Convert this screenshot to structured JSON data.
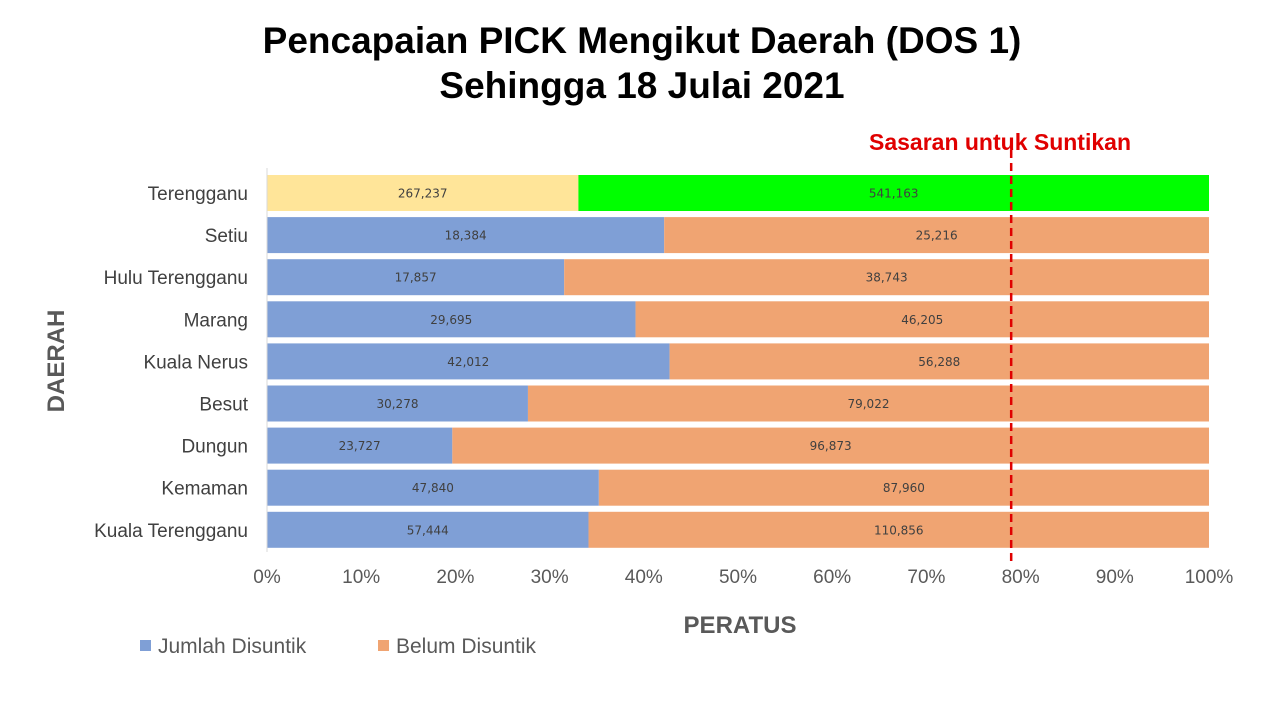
{
  "title": {
    "line1": "Pencapaian PICK Mengikut Daerah (DOS 1)",
    "line2": "Sehingga 18 Julai 2021"
  },
  "chart_data": {
    "type": "bar",
    "orientation": "horizontal",
    "stacked": "100%",
    "categories": [
      "Terengganu",
      "Setiu",
      "Hulu Terengganu",
      "Marang ",
      "Kuala Nerus",
      "Besut",
      "Dungun",
      "Kemaman",
      "Kuala Terengganu"
    ],
    "series": [
      {
        "name": "Jumlah Disuntik",
        "values": [
          267237,
          18384,
          17857,
          29695,
          42012,
          30278,
          23727,
          47840,
          57444
        ],
        "color": "#7f9fd6"
      },
      {
        "name": "Belum Disuntik",
        "values": [
          541163,
          25216,
          38743,
          46205,
          56288,
          79022,
          96873,
          87960,
          110856
        ],
        "color": "#f0a472"
      }
    ],
    "data_labels": [
      [
        "267,237",
        "18,384",
        "17,857",
        "29,695",
        "42,012",
        "30,278",
        "23,727",
        "47,840",
        "57,444"
      ],
      [
        "541,163",
        "25,216",
        "38,743",
        "46,205",
        "56,288",
        "79,022",
        "96,873",
        "87,960",
        "110,856"
      ]
    ],
    "highlight_row": {
      "category": "Terengganu",
      "colors": [
        "#ffe599",
        "#00ff00"
      ]
    },
    "xlabel": "PERATUS",
    "ylabel": "DAERAH",
    "xlim": [
      0,
      100
    ],
    "x_ticks": [
      "0%",
      "10%",
      "20%",
      "30%",
      "40%",
      "50%",
      "60%",
      "70%",
      "80%",
      "90%",
      "100%"
    ],
    "reference_line": {
      "value": 79,
      "label": "Sasaran untuk Suntikan",
      "color": "#e00000",
      "style": "dashed"
    },
    "legend_position": "bottom-left",
    "grid": false
  }
}
